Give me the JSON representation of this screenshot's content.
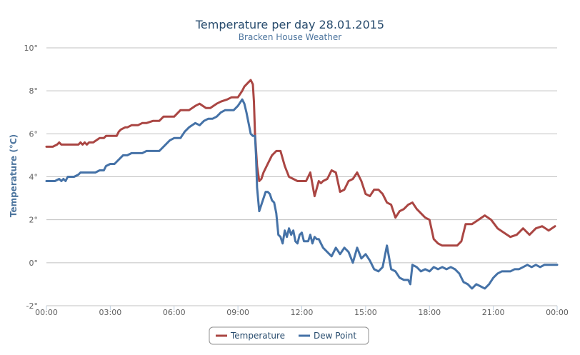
{
  "chart_data": {
    "type": "line",
    "title": "Temperature per day 28.01.2015",
    "subtitle": "Bracken House Weather",
    "ylabel": "Temperature (°C)",
    "xlabel": "",
    "ylim": [
      -2,
      10
    ],
    "xlim": [
      0,
      24
    ],
    "y_ticks": [
      -2,
      0,
      2,
      4,
      6,
      8,
      10
    ],
    "y_tick_labels": [
      "-2°",
      "0°",
      "2°",
      "4°",
      "6°",
      "8°",
      "10°"
    ],
    "x_ticks": [
      0,
      3,
      6,
      9,
      12,
      15,
      18,
      21,
      24
    ],
    "x_tick_labels": [
      "00:00",
      "03:00",
      "06:00",
      "09:00",
      "12:00",
      "15:00",
      "18:00",
      "21:00",
      "00:00"
    ],
    "grid": true,
    "legend_position": "bottom-center",
    "series": [
      {
        "name": "Temperature",
        "color": "#aa4643",
        "x": [
          0.0,
          0.3,
          0.5,
          0.6,
          0.7,
          1.0,
          1.5,
          1.6,
          1.7,
          1.8,
          1.9,
          2.0,
          2.2,
          2.5,
          2.7,
          2.8,
          3.0,
          3.3,
          3.4,
          3.5,
          3.7,
          3.8,
          4.0,
          4.3,
          4.5,
          4.7,
          5.0,
          5.3,
          5.5,
          5.7,
          6.0,
          6.3,
          6.5,
          6.7,
          7.0,
          7.2,
          7.5,
          7.7,
          8.0,
          8.2,
          8.5,
          8.7,
          9.0,
          9.2,
          9.3,
          9.5,
          9.6,
          9.7,
          9.75,
          9.8,
          9.9,
          10.0,
          10.1,
          10.2,
          10.4,
          10.6,
          10.8,
          11.0,
          11.2,
          11.4,
          11.6,
          11.8,
          12.0,
          12.2,
          12.4,
          12.6,
          12.8,
          12.9,
          13.0,
          13.2,
          13.4,
          13.6,
          13.8,
          14.0,
          14.2,
          14.4,
          14.6,
          14.8,
          15.0,
          15.2,
          15.4,
          15.6,
          15.8,
          16.0,
          16.2,
          16.4,
          16.6,
          16.8,
          17.0,
          17.2,
          17.4,
          17.6,
          17.8,
          18.0,
          18.2,
          18.4,
          18.6,
          18.8,
          19.0,
          19.3,
          19.5,
          19.7,
          20.0,
          20.3,
          20.6,
          20.9,
          21.2,
          21.5,
          21.8,
          22.1,
          22.4,
          22.7,
          23.0,
          23.3,
          23.6,
          23.9
        ],
        "y": [
          5.4,
          5.4,
          5.5,
          5.6,
          5.5,
          5.5,
          5.5,
          5.6,
          5.5,
          5.6,
          5.5,
          5.6,
          5.6,
          5.8,
          5.8,
          5.9,
          5.9,
          5.9,
          6.1,
          6.2,
          6.3,
          6.3,
          6.4,
          6.4,
          6.5,
          6.5,
          6.6,
          6.6,
          6.8,
          6.8,
          6.8,
          7.1,
          7.1,
          7.1,
          7.3,
          7.4,
          7.2,
          7.2,
          7.4,
          7.5,
          7.6,
          7.7,
          7.7,
          8.0,
          8.2,
          8.4,
          8.5,
          8.3,
          7.5,
          6.0,
          4.5,
          3.8,
          3.9,
          4.2,
          4.6,
          5.0,
          5.2,
          5.2,
          4.5,
          4.0,
          3.9,
          3.8,
          3.8,
          3.8,
          4.2,
          3.1,
          3.8,
          3.7,
          3.8,
          3.9,
          4.3,
          4.2,
          3.3,
          3.4,
          3.8,
          3.9,
          4.2,
          3.8,
          3.2,
          3.1,
          3.4,
          3.4,
          3.2,
          2.8,
          2.7,
          2.1,
          2.4,
          2.5,
          2.7,
          2.8,
          2.5,
          2.3,
          2.1,
          2.0,
          1.1,
          0.9,
          0.8,
          0.8,
          0.8,
          0.8,
          1.0,
          1.8,
          1.8,
          2.0,
          2.2,
          2.0,
          1.6,
          1.4,
          1.2,
          1.3,
          1.6,
          1.3,
          1.6,
          1.7,
          1.5,
          1.7
        ]
      },
      {
        "name": "Dew Point",
        "color": "#4572a7",
        "x": [
          0.0,
          0.2,
          0.4,
          0.6,
          0.7,
          0.8,
          0.9,
          1.0,
          1.3,
          1.5,
          1.6,
          2.0,
          2.3,
          2.5,
          2.7,
          2.8,
          3.0,
          3.2,
          3.5,
          3.6,
          3.8,
          4.0,
          4.2,
          4.5,
          4.7,
          5.0,
          5.3,
          5.5,
          5.7,
          5.8,
          6.0,
          6.3,
          6.5,
          6.7,
          7.0,
          7.2,
          7.4,
          7.6,
          7.8,
          8.0,
          8.2,
          8.4,
          8.6,
          8.8,
          9.0,
          9.2,
          9.3,
          9.4,
          9.5,
          9.6,
          9.7,
          9.8,
          9.85,
          9.9,
          10.0,
          10.1,
          10.2,
          10.3,
          10.4,
          10.5,
          10.6,
          10.7,
          10.8,
          10.9,
          11.0,
          11.1,
          11.2,
          11.3,
          11.4,
          11.5,
          11.6,
          11.7,
          11.8,
          11.9,
          12.0,
          12.1,
          12.2,
          12.3,
          12.4,
          12.5,
          12.6,
          12.7,
          12.8,
          12.9,
          13.0,
          13.2,
          13.4,
          13.6,
          13.8,
          14.0,
          14.2,
          14.4,
          14.6,
          14.8,
          15.0,
          15.2,
          15.4,
          15.6,
          15.8,
          16.0,
          16.2,
          16.4,
          16.6,
          16.8,
          17.0,
          17.1,
          17.2,
          17.4,
          17.6,
          17.8,
          18.0,
          18.2,
          18.4,
          18.6,
          18.8,
          19.0,
          19.2,
          19.4,
          19.6,
          19.8,
          20.0,
          20.2,
          20.4,
          20.6,
          20.8,
          21.0,
          21.2,
          21.4,
          21.6,
          21.8,
          22.0,
          22.2,
          22.4,
          22.6,
          22.8,
          23.0,
          23.2,
          23.4,
          23.6,
          23.8,
          24.0
        ],
        "y": [
          3.8,
          3.8,
          3.8,
          3.9,
          3.8,
          3.9,
          3.8,
          4.0,
          4.0,
          4.1,
          4.2,
          4.2,
          4.2,
          4.3,
          4.3,
          4.5,
          4.6,
          4.6,
          4.9,
          5.0,
          5.0,
          5.1,
          5.1,
          5.1,
          5.2,
          5.2,
          5.2,
          5.4,
          5.6,
          5.7,
          5.8,
          5.8,
          6.1,
          6.3,
          6.5,
          6.4,
          6.6,
          6.7,
          6.7,
          6.8,
          7.0,
          7.1,
          7.1,
          7.1,
          7.3,
          7.6,
          7.4,
          7.0,
          6.5,
          6.0,
          5.9,
          5.9,
          5.0,
          3.5,
          2.4,
          2.7,
          3.0,
          3.3,
          3.3,
          3.2,
          2.9,
          2.8,
          2.3,
          1.3,
          1.2,
          0.9,
          1.5,
          1.2,
          1.6,
          1.3,
          1.5,
          1.0,
          0.9,
          1.3,
          1.4,
          1.0,
          1.0,
          1.0,
          1.3,
          0.9,
          1.2,
          1.1,
          1.1,
          0.9,
          0.7,
          0.5,
          0.3,
          0.7,
          0.4,
          0.7,
          0.5,
          0.0,
          0.7,
          0.2,
          0.4,
          0.1,
          -0.3,
          -0.4,
          -0.2,
          0.8,
          -0.3,
          -0.4,
          -0.7,
          -0.8,
          -0.8,
          -1.0,
          -0.1,
          -0.2,
          -0.4,
          -0.3,
          -0.4,
          -0.2,
          -0.3,
          -0.2,
          -0.3,
          -0.2,
          -0.3,
          -0.5,
          -0.9,
          -1.0,
          -1.2,
          -1.0,
          -1.1,
          -1.2,
          -1.0,
          -0.7,
          -0.5,
          -0.4,
          -0.4,
          -0.4,
          -0.3,
          -0.3,
          -0.2,
          -0.1,
          -0.2,
          -0.1,
          -0.2,
          -0.1,
          -0.1,
          -0.1,
          -0.1
        ]
      }
    ]
  }
}
